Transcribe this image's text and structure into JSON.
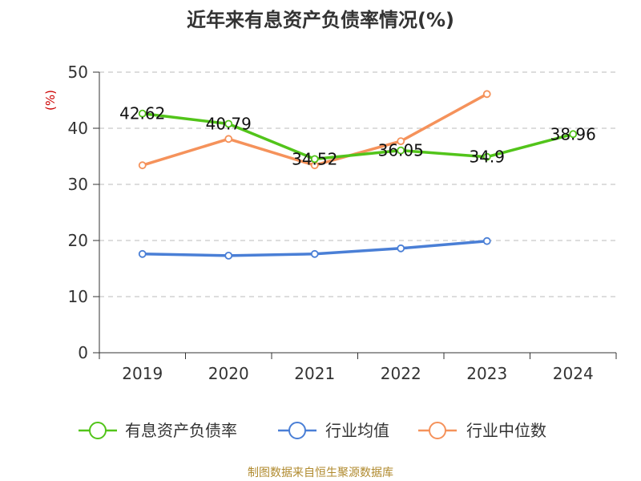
{
  "chart_data": {
    "type": "line",
    "title": "近年来有息资产负债率情况(%)",
    "ylabel": "(%)",
    "xlabel": "",
    "categories": [
      "2019",
      "2020",
      "2021",
      "2022",
      "2023",
      "2024"
    ],
    "ylim": [
      0,
      50
    ],
    "yticks": [
      "0",
      "10",
      "20",
      "30",
      "40",
      "50"
    ],
    "grid": true,
    "legend_position": "bottom",
    "series": [
      {
        "name": "有息资产负债率",
        "color": "#52c41a",
        "values": [
          42.62,
          40.79,
          34.52,
          36.05,
          34.9,
          38.96
        ],
        "labels": [
          "42.62",
          "40.79",
          "34.52",
          "36.05",
          "34.9",
          "38.96"
        ]
      },
      {
        "name": "行业均值",
        "color": "#4a7fd6",
        "values": [
          17.6,
          17.3,
          17.6,
          18.6,
          19.9,
          null
        ]
      },
      {
        "name": "行业中位数",
        "color": "#f5925b",
        "values": [
          33.4,
          38.1,
          33.4,
          37.7,
          46.1,
          null
        ]
      }
    ]
  },
  "source": "制图数据来自恒生聚源数据库"
}
